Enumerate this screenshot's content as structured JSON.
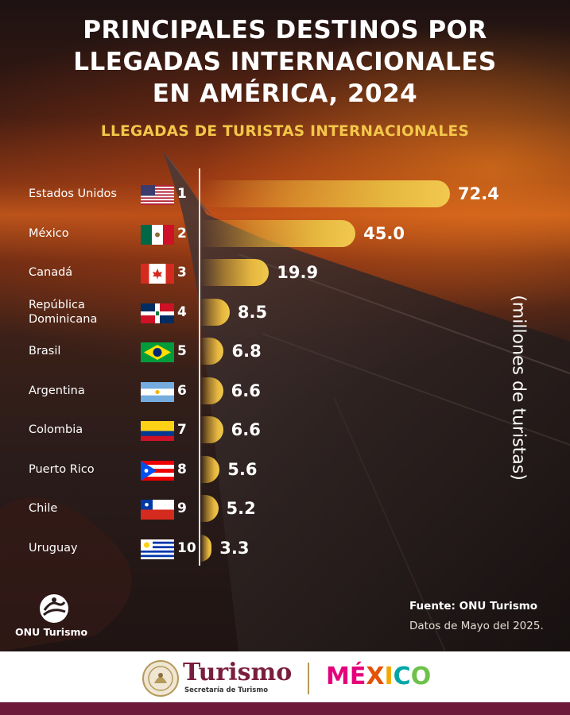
{
  "title_lines": [
    "PRINCIPALES DESTINOS POR",
    "LLEGADAS INTERNACIONALES",
    "EN AMÉRICA, 2024"
  ],
  "chart_data": {
    "type": "bar",
    "orientation": "horizontal",
    "title": "PRINCIPALES DESTINOS POR LLEGADAS INTERNACIONALES EN AMÉRICA, 2024",
    "subtitle": "LLEGADAS DE TURISTAS INTERNACIONALES",
    "ylabel": "(millones de turistas)",
    "categories": [
      "Estados Unidos",
      "México",
      "Canadá",
      "República Dominicana",
      "Brasil",
      "Argentina",
      "Colombia",
      "Puerto Rico",
      "Chile",
      "Uruguay"
    ],
    "ranks": [
      "1",
      "2",
      "3",
      "4",
      "5",
      "6",
      "7",
      "8",
      "9",
      "10"
    ],
    "values": [
      72.4,
      45.0,
      19.9,
      8.5,
      6.8,
      6.6,
      6.6,
      5.6,
      5.2,
      3.3
    ],
    "value_labels": [
      "72.4",
      "45.0",
      "19.9",
      "8.5",
      "6.8",
      "6.6",
      "6.6",
      "5.6",
      "5.2",
      "3.3"
    ],
    "flags": [
      "usa-flag",
      "mexico-flag",
      "canada-flag",
      "dominican-republic-flag",
      "brazil-flag",
      "argentina-flag",
      "colombia-flag",
      "puerto-rico-flag",
      "chile-flag",
      "uruguay-flag"
    ],
    "bar_color": "#e6b73f",
    "grid": false,
    "legend": "none"
  },
  "source": {
    "org": "ONU Turismo",
    "label": "Fuente: ONU Turismo",
    "date_note": "Datos de Mayo del 2025."
  },
  "footer": {
    "agency": "Turismo",
    "agency_sub": "Secretaría de Turismo",
    "brand": [
      "M",
      "É",
      "X",
      "I",
      "C",
      "O"
    ],
    "brand_colors": [
      "#e4007c",
      "#e4007c",
      "#e35205",
      "#f2a900",
      "#00a6a6",
      "#6cc24a"
    ],
    "accent": "#7a1e3e"
  }
}
